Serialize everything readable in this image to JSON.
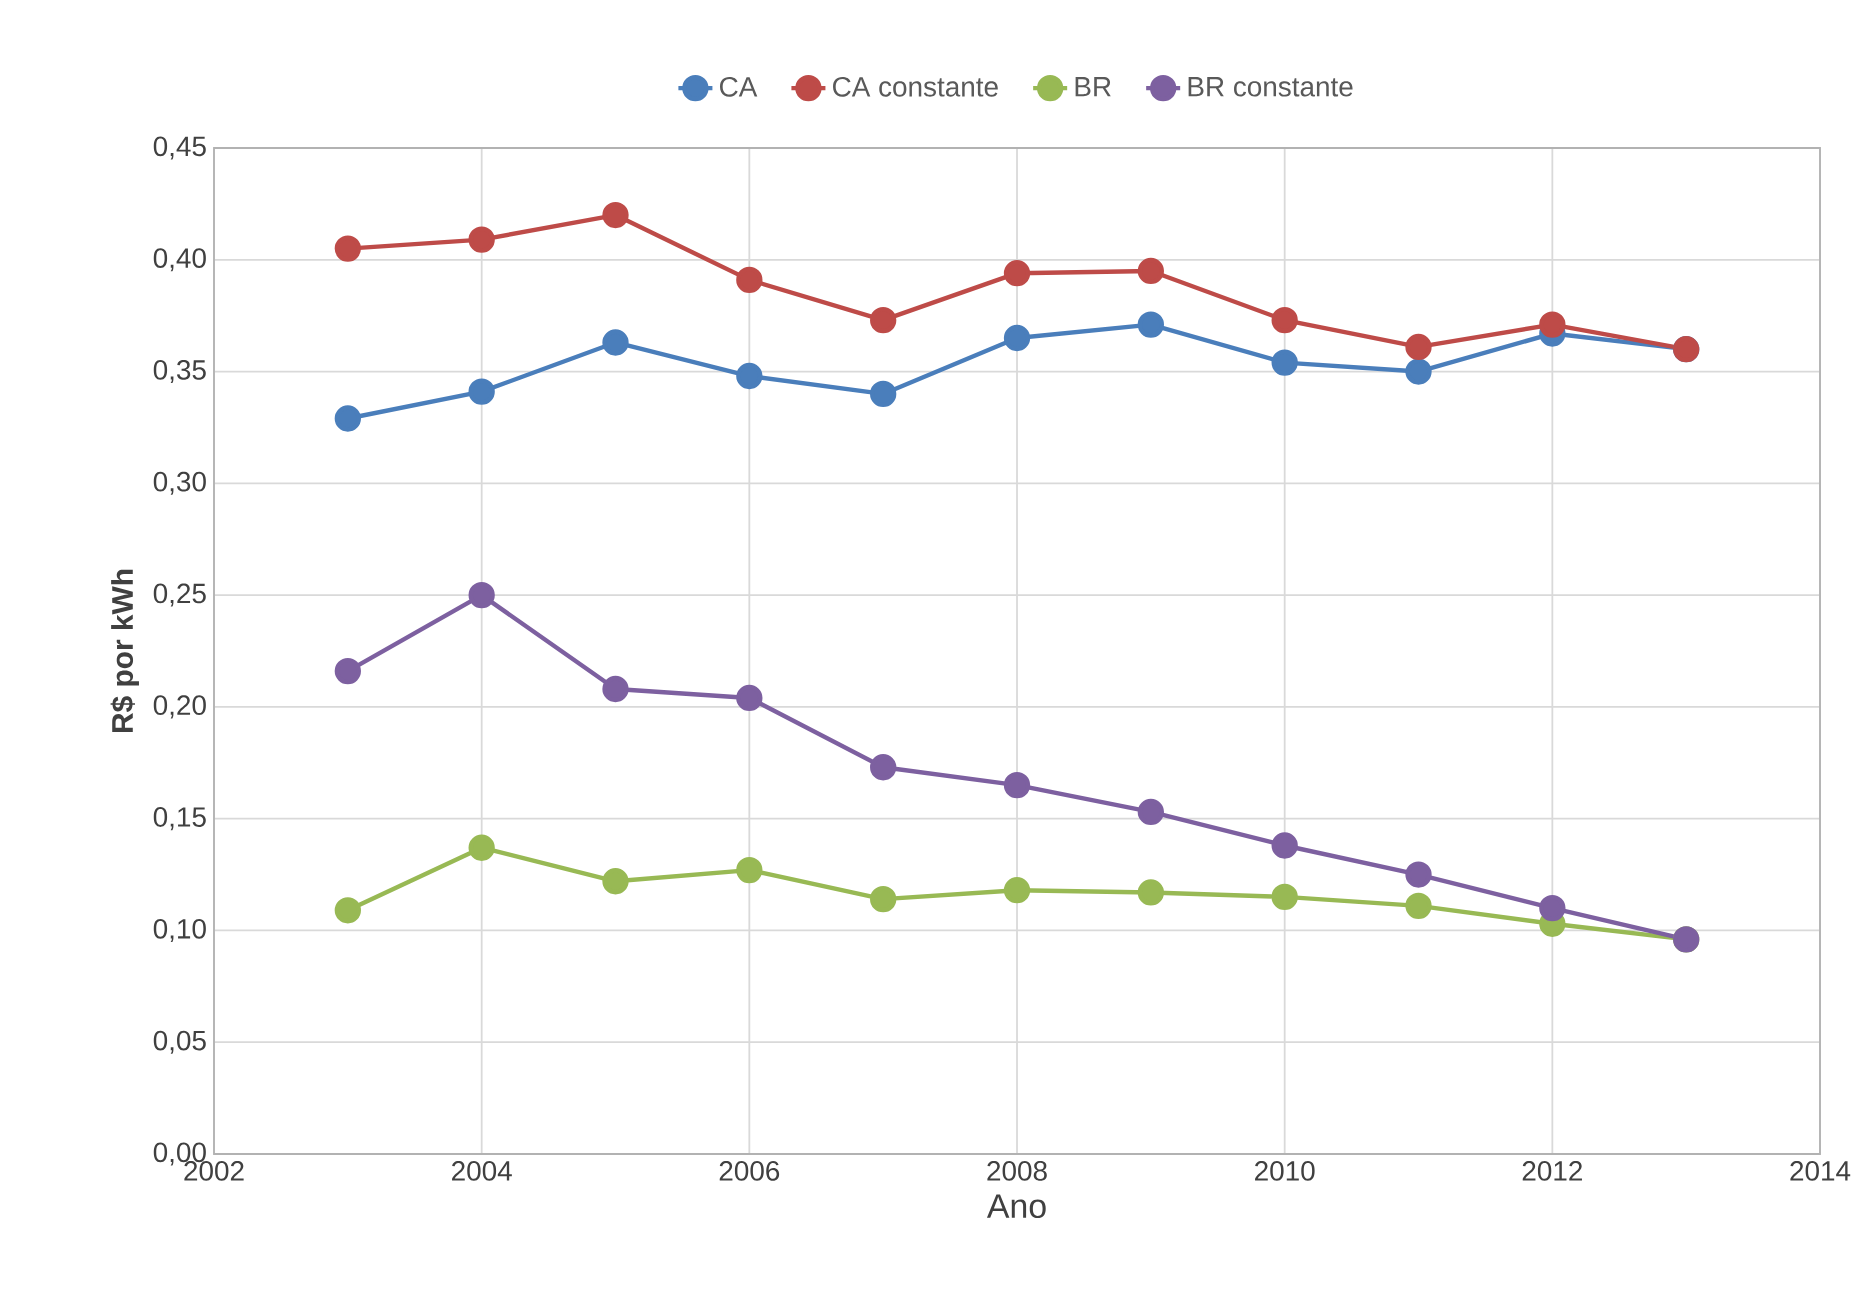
{
  "chart_data": {
    "type": "line",
    "xlabel": "Ano",
    "ylabel": "R$ por kWh",
    "x": [
      2003,
      2004,
      2005,
      2006,
      2007,
      2008,
      2009,
      2010,
      2011,
      2012,
      2013
    ],
    "series": [
      {
        "name": "CA",
        "color": "#4a7ebb",
        "values": [
          0.329,
          0.341,
          0.363,
          0.348,
          0.34,
          0.365,
          0.371,
          0.354,
          0.35,
          0.367,
          0.36
        ]
      },
      {
        "name": "CA constante",
        "color": "#be4b48",
        "values": [
          0.405,
          0.409,
          0.42,
          0.391,
          0.373,
          0.394,
          0.395,
          0.373,
          0.361,
          0.371,
          0.36
        ]
      },
      {
        "name": "BR",
        "color": "#98b954",
        "values": [
          0.109,
          0.137,
          0.122,
          0.127,
          0.114,
          0.118,
          0.117,
          0.115,
          0.111,
          0.103,
          0.096
        ]
      },
      {
        "name": "BR constante",
        "color": "#7d60a0",
        "values": [
          0.216,
          0.25,
          0.208,
          0.204,
          0.173,
          0.165,
          0.153,
          0.138,
          0.125,
          0.11,
          0.096
        ]
      }
    ],
    "xlim": [
      2002,
      2014
    ],
    "xticks": [
      2002,
      2004,
      2006,
      2008,
      2010,
      2012,
      2014
    ],
    "ylim": [
      0,
      0.45
    ],
    "yticks": [
      {
        "value": 0,
        "label": "0,00"
      },
      {
        "value": 0.05,
        "label": "0,05"
      },
      {
        "value": 0.1,
        "label": "0,10"
      },
      {
        "value": 0.15,
        "label": "0,15"
      },
      {
        "value": 0.2,
        "label": "0,20"
      },
      {
        "value": 0.25,
        "label": "0,25"
      },
      {
        "value": 0.3,
        "label": "0,30"
      },
      {
        "value": 0.35,
        "label": "0,35"
      },
      {
        "value": 0.4,
        "label": "0,40"
      },
      {
        "value": 0.45,
        "label": "0,45"
      }
    ],
    "grid": true,
    "legend": "top",
    "marker": "circle",
    "line_style": "solid"
  }
}
